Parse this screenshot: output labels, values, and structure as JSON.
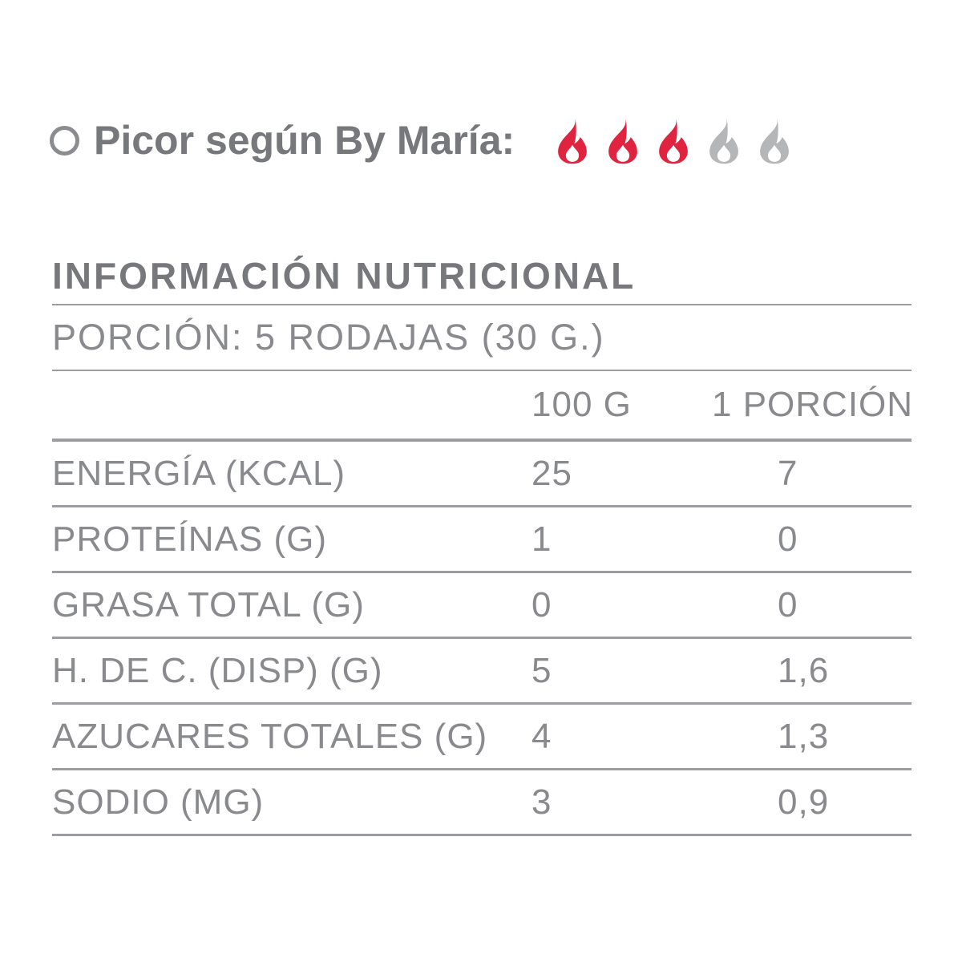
{
  "spice": {
    "label": "Picor según By María:",
    "level": 3,
    "max": 5
  },
  "nutrition": {
    "title": "INFORMACIÓN NUTRICIONAL",
    "portion": "PORCIÓN: 5 RODAJAS (30 G.)",
    "columns": [
      "100 G",
      "1 PORCIÓN"
    ],
    "rows": [
      {
        "label": "ENERGÍA (KCAL)",
        "per100": "25",
        "portion": "7"
      },
      {
        "label": "PROTEÍNAS (G)",
        "per100": "1",
        "portion": "0"
      },
      {
        "label": "GRASA TOTAL (G)",
        "per100": "0",
        "portion": "0"
      },
      {
        "label": "H. DE C. (DISP) (G)",
        "per100": "5",
        "portion": "1,6"
      },
      {
        "label": "AZUCARES TOTALES (G)",
        "per100": "4",
        "portion": "1,3"
      },
      {
        "label": "SODIO (MG)",
        "per100": "3",
        "portion": "0,9"
      }
    ]
  },
  "colors": {
    "accent_red": "#e02440",
    "flame_off": "#b5b6b8",
    "text_gray": "#898a8d",
    "heading_gray": "#77787b",
    "line_gray": "#9c9da0"
  }
}
